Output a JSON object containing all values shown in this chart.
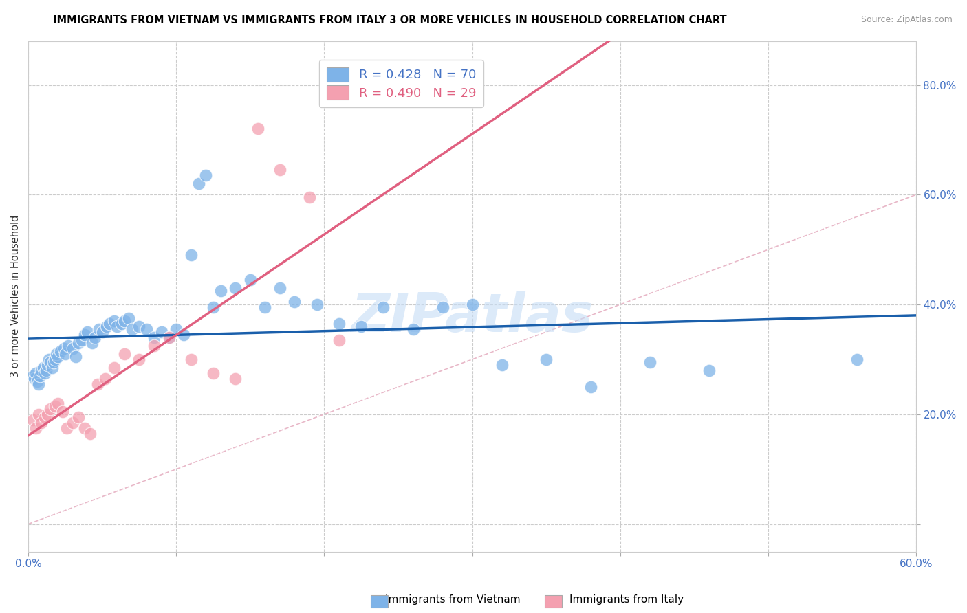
{
  "title": "IMMIGRANTS FROM VIETNAM VS IMMIGRANTS FROM ITALY 3 OR MORE VEHICLES IN HOUSEHOLD CORRELATION CHART",
  "source": "Source: ZipAtlas.com",
  "ylabel": "3 or more Vehicles in Household",
  "xlim": [
    0.0,
    0.6
  ],
  "ylim": [
    -0.05,
    0.88
  ],
  "yticks": [
    0.0,
    0.2,
    0.4,
    0.6,
    0.8
  ],
  "xticks": [
    0.0,
    0.1,
    0.2,
    0.3,
    0.4,
    0.5,
    0.6
  ],
  "r_vietnam": 0.428,
  "n_vietnam": 70,
  "r_italy": 0.49,
  "n_italy": 29,
  "color_vietnam": "#7EB3E8",
  "color_italy": "#F4A0B0",
  "line_color_vietnam": "#1A5FAB",
  "line_color_italy": "#E06080",
  "diagonal_color": "#D8D8D8",
  "watermark": "ZIPatlas",
  "vietnam_x": [
    0.003,
    0.004,
    0.005,
    0.006,
    0.007,
    0.008,
    0.009,
    0.01,
    0.011,
    0.012,
    0.013,
    0.014,
    0.015,
    0.016,
    0.017,
    0.018,
    0.019,
    0.02,
    0.022,
    0.024,
    0.025,
    0.027,
    0.03,
    0.032,
    0.034,
    0.036,
    0.038,
    0.04,
    0.043,
    0.045,
    0.048,
    0.05,
    0.053,
    0.055,
    0.058,
    0.06,
    0.063,
    0.065,
    0.068,
    0.07,
    0.075,
    0.08,
    0.085,
    0.09,
    0.095,
    0.1,
    0.105,
    0.11,
    0.115,
    0.12,
    0.125,
    0.13,
    0.14,
    0.15,
    0.16,
    0.17,
    0.18,
    0.195,
    0.21,
    0.225,
    0.24,
    0.26,
    0.28,
    0.3,
    0.32,
    0.35,
    0.38,
    0.42,
    0.46,
    0.56
  ],
  "vietnam_y": [
    0.27,
    0.265,
    0.275,
    0.26,
    0.255,
    0.27,
    0.28,
    0.285,
    0.275,
    0.28,
    0.29,
    0.3,
    0.295,
    0.285,
    0.295,
    0.3,
    0.31,
    0.305,
    0.315,
    0.32,
    0.31,
    0.325,
    0.32,
    0.305,
    0.33,
    0.335,
    0.345,
    0.35,
    0.33,
    0.34,
    0.355,
    0.35,
    0.36,
    0.365,
    0.37,
    0.36,
    0.365,
    0.37,
    0.375,
    0.355,
    0.36,
    0.355,
    0.34,
    0.35,
    0.34,
    0.355,
    0.345,
    0.49,
    0.62,
    0.635,
    0.395,
    0.425,
    0.43,
    0.445,
    0.395,
    0.43,
    0.405,
    0.4,
    0.365,
    0.36,
    0.395,
    0.355,
    0.395,
    0.4,
    0.29,
    0.3,
    0.25,
    0.295,
    0.28,
    0.3
  ],
  "italy_x": [
    0.003,
    0.005,
    0.007,
    0.009,
    0.011,
    0.013,
    0.015,
    0.018,
    0.02,
    0.023,
    0.026,
    0.03,
    0.034,
    0.038,
    0.042,
    0.047,
    0.052,
    0.058,
    0.065,
    0.075,
    0.085,
    0.095,
    0.11,
    0.125,
    0.14,
    0.155,
    0.17,
    0.19,
    0.21
  ],
  "italy_y": [
    0.19,
    0.175,
    0.2,
    0.185,
    0.195,
    0.2,
    0.21,
    0.215,
    0.22,
    0.205,
    0.175,
    0.185,
    0.195,
    0.175,
    0.165,
    0.255,
    0.265,
    0.285,
    0.31,
    0.3,
    0.325,
    0.34,
    0.3,
    0.275,
    0.265,
    0.72,
    0.645,
    0.595,
    0.335
  ]
}
